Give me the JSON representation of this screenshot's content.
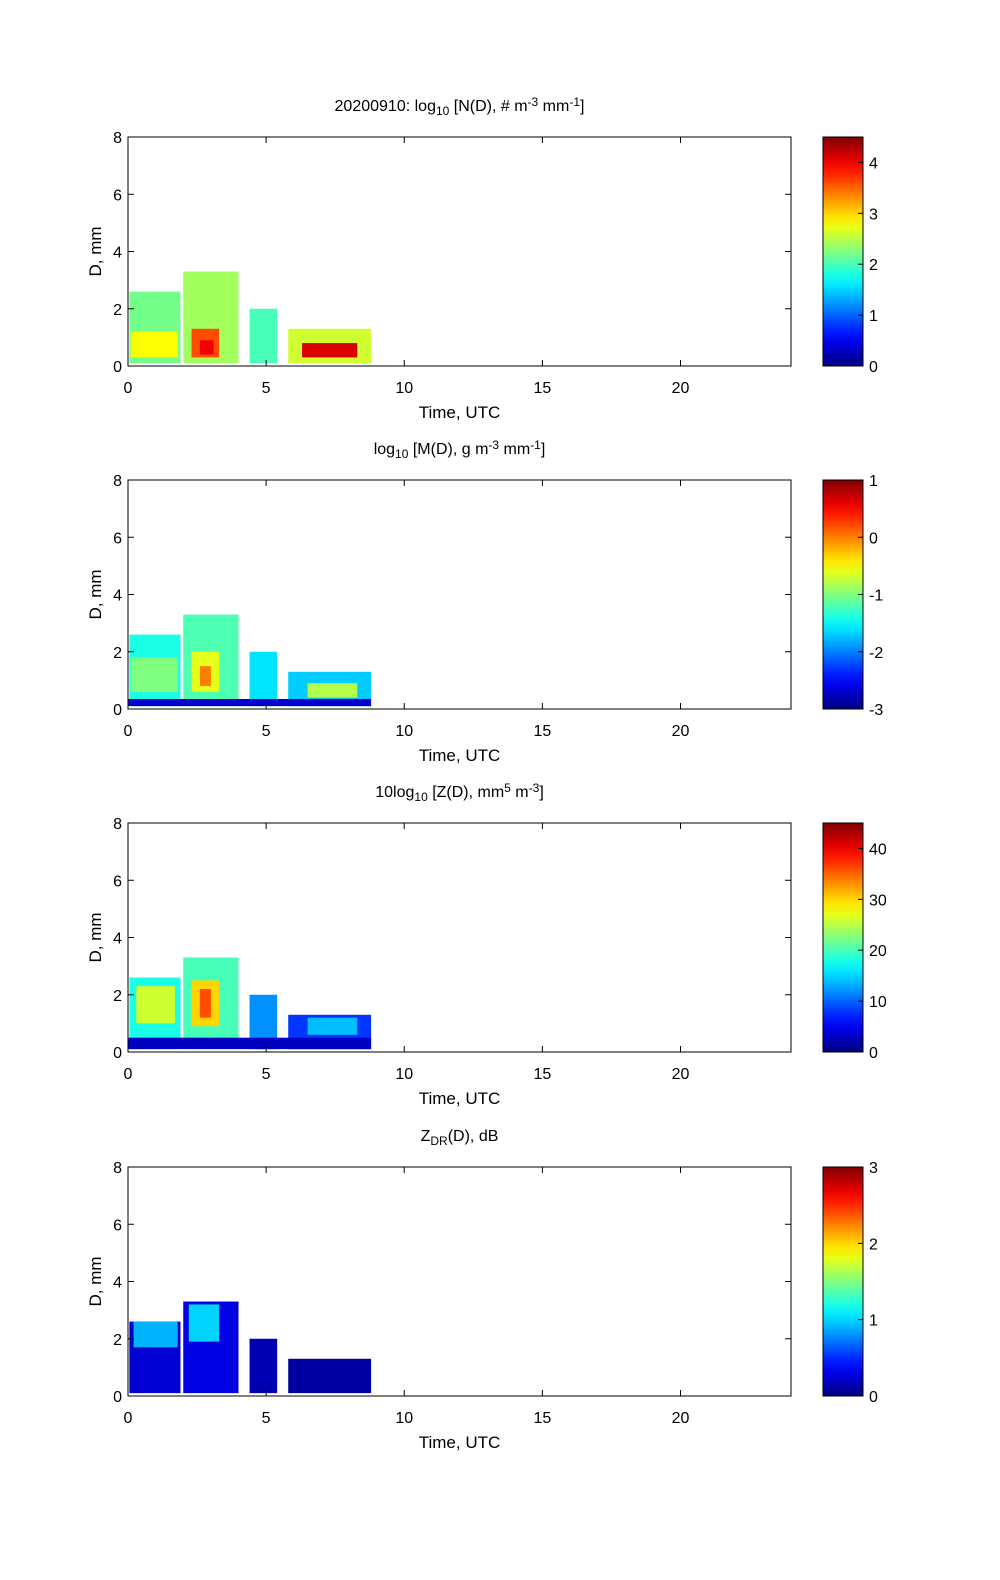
{
  "figure": {
    "background": "#ffffff"
  },
  "chart_data": [
    {
      "type": "heatmap",
      "title": {
        "parts": [
          {
            "text": "20200910: log",
            "style": "normal"
          },
          {
            "text": "10",
            "style": "sub"
          },
          {
            "text": " [N(D), # m",
            "style": "normal"
          },
          {
            "text": "-3",
            "style": "sup"
          },
          {
            "text": " mm",
            "style": "normal"
          },
          {
            "text": "-1",
            "style": "sup"
          },
          {
            "text": "]",
            "style": "normal"
          }
        ]
      },
      "xlabel": "Time, UTC",
      "ylabel": "D, mm",
      "xlim": [
        0,
        24
      ],
      "ylim": [
        0,
        8
      ],
      "xticks": [
        0,
        5,
        10,
        15,
        20
      ],
      "yticks": [
        0,
        2,
        4,
        6,
        8
      ],
      "colormap": "jet",
      "clim": [
        0,
        4.5
      ],
      "colorbar_ticks": [
        0,
        1,
        2,
        3,
        4
      ],
      "grid": false,
      "cells": [
        {
          "t0": 0.05,
          "t1": 1.9,
          "d0": 0.1,
          "d1": 2.6,
          "v": 2.2
        },
        {
          "t0": 2.0,
          "t1": 4.0,
          "d0": 0.1,
          "d1": 3.3,
          "v": 2.4
        },
        {
          "t0": 4.4,
          "t1": 5.4,
          "d0": 0.1,
          "d1": 2.0,
          "v": 2.0
        },
        {
          "t0": 5.8,
          "t1": 8.8,
          "d0": 0.1,
          "d1": 1.3,
          "v": 2.6
        },
        {
          "t0": 0.1,
          "t1": 1.8,
          "d0": 0.3,
          "d1": 1.2,
          "v": 2.8
        },
        {
          "t0": 2.3,
          "t1": 3.3,
          "d0": 0.3,
          "d1": 1.3,
          "v": 3.6
        },
        {
          "t0": 2.6,
          "t1": 3.1,
          "d0": 0.4,
          "d1": 0.9,
          "v": 4.0
        },
        {
          "t0": 6.3,
          "t1": 8.3,
          "d0": 0.3,
          "d1": 0.8,
          "v": 4.1
        }
      ]
    },
    {
      "type": "heatmap",
      "title": {
        "parts": [
          {
            "text": "log",
            "style": "normal"
          },
          {
            "text": "10",
            "style": "sub"
          },
          {
            "text": " [M(D), g m",
            "style": "normal"
          },
          {
            "text": "-3",
            "style": "sup"
          },
          {
            "text": " mm",
            "style": "normal"
          },
          {
            "text": "-1",
            "style": "sup"
          },
          {
            "text": "]",
            "style": "normal"
          }
        ]
      },
      "xlabel": "Time, UTC",
      "ylabel": "D, mm",
      "xlim": [
        0,
        24
      ],
      "ylim": [
        0,
        8
      ],
      "xticks": [
        0,
        5,
        10,
        15,
        20
      ],
      "yticks": [
        0,
        2,
        4,
        6,
        8
      ],
      "colormap": "jet",
      "clim": [
        -3,
        1
      ],
      "colorbar_ticks": [
        -3,
        -2,
        -1,
        0,
        1
      ],
      "grid": false,
      "cells": [
        {
          "t0": 0.05,
          "t1": 1.9,
          "d0": 0.1,
          "d1": 2.6,
          "v": -1.4
        },
        {
          "t0": 2.0,
          "t1": 4.0,
          "d0": 0.1,
          "d1": 3.3,
          "v": -1.2
        },
        {
          "t0": 4.4,
          "t1": 5.4,
          "d0": 0.1,
          "d1": 2.0,
          "v": -1.6
        },
        {
          "t0": 5.8,
          "t1": 8.8,
          "d0": 0.1,
          "d1": 1.3,
          "v": -1.7
        },
        {
          "t0": 0.1,
          "t1": 1.8,
          "d0": 0.6,
          "d1": 1.8,
          "v": -1.0
        },
        {
          "t0": 2.3,
          "t1": 3.3,
          "d0": 0.6,
          "d1": 2.0,
          "v": -0.6
        },
        {
          "t0": 2.6,
          "t1": 3.0,
          "d0": 0.8,
          "d1": 1.5,
          "v": 0.0
        },
        {
          "t0": 6.5,
          "t1": 8.3,
          "d0": 0.4,
          "d1": 0.9,
          "v": -0.8
        },
        {
          "t0": 0.0,
          "t1": 8.8,
          "d0": 0.1,
          "d1": 0.35,
          "v": -2.7
        }
      ]
    },
    {
      "type": "heatmap",
      "title": {
        "parts": [
          {
            "text": "10log",
            "style": "normal"
          },
          {
            "text": "10",
            "style": "sub"
          },
          {
            "text": " [Z(D),  mm",
            "style": "normal"
          },
          {
            "text": "5",
            "style": "sup"
          },
          {
            "text": " m",
            "style": "normal"
          },
          {
            "text": "-3",
            "style": "sup"
          },
          {
            "text": "]",
            "style": "normal"
          }
        ]
      },
      "xlabel": "Time, UTC",
      "ylabel": "D, mm",
      "xlim": [
        0,
        24
      ],
      "ylim": [
        0,
        8
      ],
      "xticks": [
        0,
        5,
        10,
        15,
        20
      ],
      "yticks": [
        0,
        2,
        4,
        6,
        8
      ],
      "colormap": "jet",
      "clim": [
        0,
        45
      ],
      "colorbar_ticks": [
        0,
        10,
        20,
        30,
        40
      ],
      "grid": false,
      "cells": [
        {
          "t0": 0.05,
          "t1": 1.9,
          "d0": 0.1,
          "d1": 2.6,
          "v": 18
        },
        {
          "t0": 2.0,
          "t1": 4.0,
          "d0": 0.1,
          "d1": 3.3,
          "v": 20
        },
        {
          "t0": 4.4,
          "t1": 5.4,
          "d0": 0.1,
          "d1": 2.0,
          "v": 12
        },
        {
          "t0": 5.8,
          "t1": 8.8,
          "d0": 0.1,
          "d1": 1.3,
          "v": 8
        },
        {
          "t0": 0.3,
          "t1": 1.7,
          "d0": 1.0,
          "d1": 2.3,
          "v": 26
        },
        {
          "t0": 2.3,
          "t1": 3.3,
          "d0": 0.9,
          "d1": 2.5,
          "v": 30
        },
        {
          "t0": 2.6,
          "t1": 3.0,
          "d0": 1.2,
          "d1": 2.2,
          "v": 36
        },
        {
          "t0": 6.5,
          "t1": 8.3,
          "d0": 0.6,
          "d1": 1.2,
          "v": 14
        },
        {
          "t0": 0.0,
          "t1": 8.8,
          "d0": 0.1,
          "d1": 0.5,
          "v": 3
        }
      ]
    },
    {
      "type": "heatmap",
      "title": {
        "parts": [
          {
            "text": "Z",
            "style": "normal"
          },
          {
            "text": "DR",
            "style": "sub"
          },
          {
            "text": "(D), dB",
            "style": "normal"
          }
        ]
      },
      "xlabel": "Time, UTC",
      "ylabel": "D, mm",
      "xlim": [
        0,
        24
      ],
      "ylim": [
        0,
        8
      ],
      "xticks": [
        0,
        5,
        10,
        15,
        20
      ],
      "yticks": [
        0,
        2,
        4,
        6,
        8
      ],
      "colormap": "jet",
      "clim": [
        0,
        3
      ],
      "colorbar_ticks": [
        0,
        1,
        2,
        3
      ],
      "grid": false,
      "cells": [
        {
          "t0": 0.05,
          "t1": 1.9,
          "d0": 0.1,
          "d1": 2.6,
          "v": 0.25
        },
        {
          "t0": 2.0,
          "t1": 4.0,
          "d0": 0.1,
          "d1": 3.3,
          "v": 0.3
        },
        {
          "t0": 4.4,
          "t1": 5.4,
          "d0": 0.1,
          "d1": 2.0,
          "v": 0.15
        },
        {
          "t0": 5.8,
          "t1": 8.8,
          "d0": 0.1,
          "d1": 1.3,
          "v": 0.1
        },
        {
          "t0": 0.2,
          "t1": 1.8,
          "d0": 1.7,
          "d1": 2.6,
          "v": 0.9
        },
        {
          "t0": 2.2,
          "t1": 3.3,
          "d0": 1.9,
          "d1": 3.2,
          "v": 1.0
        }
      ]
    }
  ]
}
